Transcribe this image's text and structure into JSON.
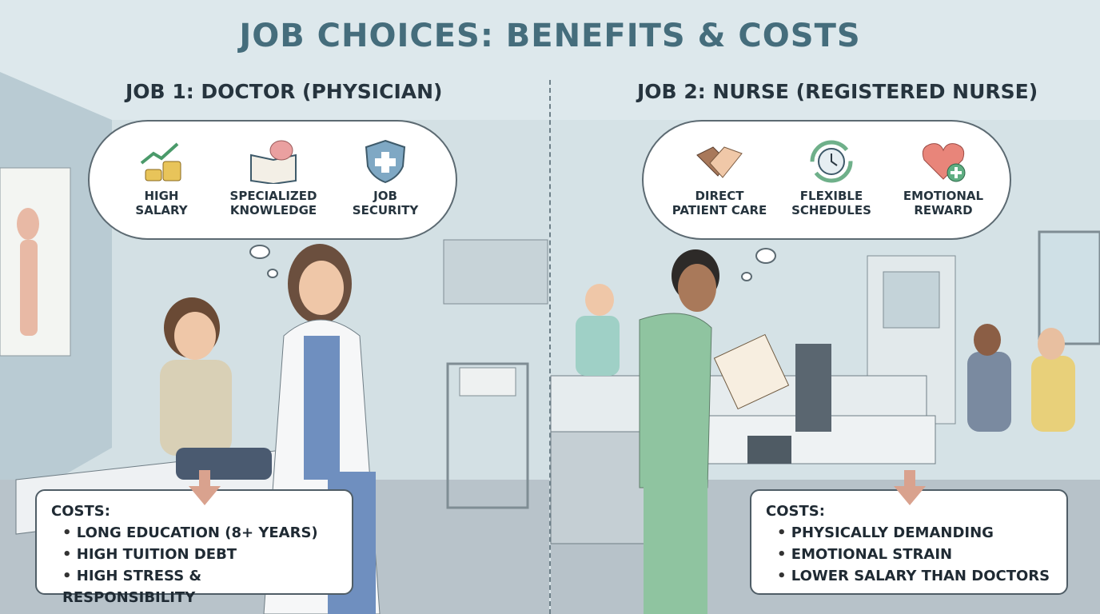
{
  "title": "JOB CHOICES: BENEFITS & COSTS",
  "job1": {
    "title": "JOB 1: DOCTOR (PHYSICIAN)",
    "benefits": [
      {
        "icon": "salary-coins-icon",
        "label_line1": "HIGH",
        "label_line2": "SALARY"
      },
      {
        "icon": "book-brain-icon",
        "label_line1": "SPECIALIZED",
        "label_line2": "KNOWLEDGE"
      },
      {
        "icon": "shield-cross-icon",
        "label_line1": "JOB",
        "label_line2": "SECURITY"
      }
    ],
    "costs_heading": "COSTS:",
    "costs": [
      "LONG EDUCATION (8+ YEARS)",
      "HIGH TUITION DEBT",
      "HIGH STRESS & RESPONSIBILITY"
    ]
  },
  "job2": {
    "title": "JOB 2: NURSE (REGISTERED NURSE)",
    "benefits": [
      {
        "icon": "handshake-icon",
        "label_line1": "DIRECT",
        "label_line2": "PATIENT CARE"
      },
      {
        "icon": "clock-cycle-icon",
        "label_line1": "FLEXIBLE",
        "label_line2": "SCHEDULES"
      },
      {
        "icon": "heart-plus-icon",
        "label_line1": "EMOTIONAL",
        "label_line2": "REWARD"
      }
    ],
    "costs_heading": "COSTS:",
    "costs": [
      "PHYSICALLY DEMANDING",
      "EMOTIONAL STRAIN",
      "LOWER SALARY THAN DOCTORS"
    ]
  },
  "colors": {
    "title": "#456d7c",
    "cost_arrow": "#d9a28e",
    "scrubs_doctor": "#6f8fbf",
    "scrubs_nurse": "#8fc4a0"
  }
}
